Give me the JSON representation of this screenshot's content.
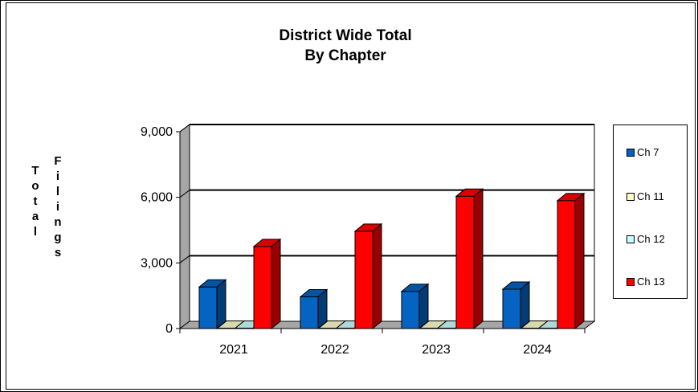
{
  "chart_data": {
    "type": "bar",
    "title": "District Wide Total",
    "subtitle": "By Chapter",
    "ylabel_words": [
      "Total",
      "Filings"
    ],
    "categories": [
      "2021",
      "2022",
      "2023",
      "2024"
    ],
    "ylim": [
      0,
      9000
    ],
    "yticks": [
      "0",
      "3,000",
      "6,000",
      "9,000"
    ],
    "ytick_values": [
      0,
      3000,
      6000,
      9000
    ],
    "grid": true,
    "legend_position": "right",
    "series": [
      {
        "name": "Ch 7",
        "values": [
          1900,
          1450,
          1700,
          1800
        ],
        "color": "#0563c1"
      },
      {
        "name": "Ch 11",
        "values": [
          10,
          10,
          10,
          10
        ],
        "color": "#ffffcc"
      },
      {
        "name": "Ch 12",
        "values": [
          5,
          5,
          5,
          5
        ],
        "color": "#ccffff"
      },
      {
        "name": "Ch 13",
        "values": [
          3750,
          4450,
          6050,
          5850
        ],
        "color": "#ff0000"
      }
    ]
  }
}
